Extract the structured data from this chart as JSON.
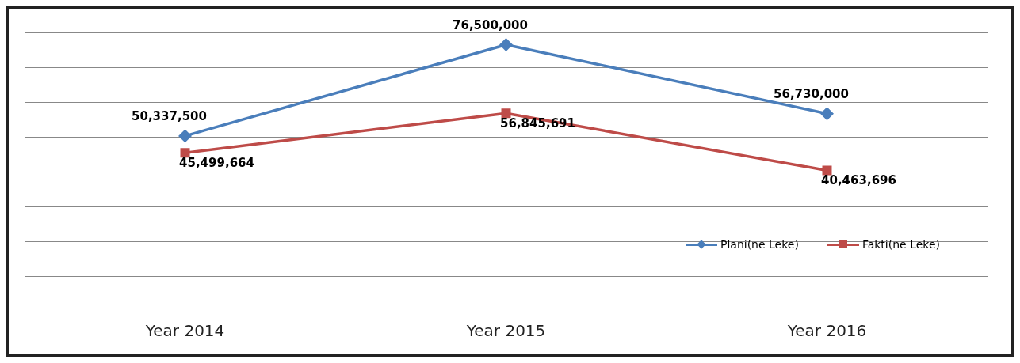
{
  "chart_data": {
    "type": "line",
    "categories": [
      "Year 2014",
      "Year 2015",
      "Year 2016"
    ],
    "series": [
      {
        "name": "Plani(ne Leke)",
        "color": "#4a7ebb",
        "marker": "diamond",
        "values": [
          50337500,
          76500000,
          56730000
        ],
        "value_labels": [
          "50,337,500",
          "76,500,000",
          "56,730,000"
        ]
      },
      {
        "name": "Fakti(ne Leke)",
        "color": "#be4b48",
        "marker": "square",
        "values": [
          45499664,
          56845691,
          40463696
        ],
        "value_labels": [
          "45,499,664",
          "56,845,691",
          "40,463,696"
        ]
      }
    ],
    "tick_labels": "x",
    "grid": "y",
    "legend": "right",
    "line_style": "solid"
  }
}
